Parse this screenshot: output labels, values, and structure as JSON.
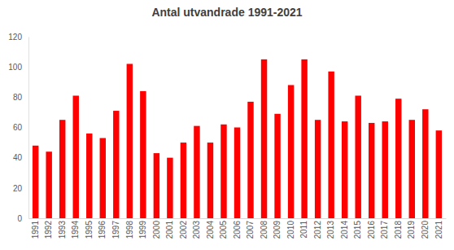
{
  "chart_data": {
    "type": "bar",
    "title": "Antal utvandrade 1991-2021",
    "categories": [
      "1991",
      "1992",
      "1993",
      "1994",
      "1995",
      "1996",
      "1997",
      "1998",
      "1999",
      "2000",
      "2001",
      "2002",
      "2003",
      "2004",
      "2005",
      "2006",
      "2007",
      "2008",
      "2009",
      "2010",
      "2011",
      "2012",
      "2013",
      "2014",
      "2015",
      "2016",
      "2017",
      "2018",
      "2019",
      "2020",
      "2021"
    ],
    "values": [
      48,
      44,
      65,
      81,
      56,
      53,
      71,
      102,
      84,
      43,
      40,
      50,
      61,
      50,
      62,
      60,
      77,
      105,
      69,
      88,
      105,
      65,
      97,
      64,
      81,
      63,
      64,
      79,
      65,
      72,
      58
    ],
    "color": "#ff0000",
    "ylim": [
      0,
      120
    ],
    "yticks": [
      0,
      20,
      40,
      60,
      80,
      100,
      120
    ],
    "grid": false
  }
}
